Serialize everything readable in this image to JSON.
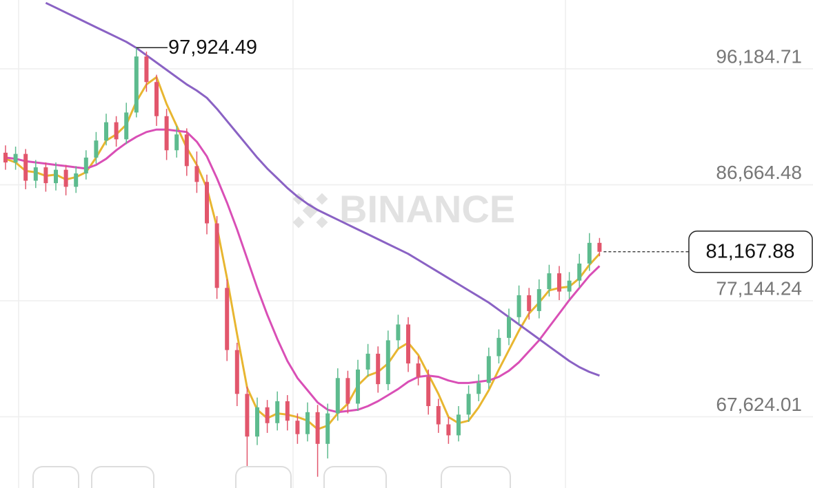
{
  "chart_data": {
    "type": "candlestick",
    "watermark": "BINANCE",
    "up_color": "#5dbb8e",
    "down_color": "#e2566c",
    "ylim": [
      61776,
      101835
    ],
    "yticks": [
      {
        "value": 96184.71,
        "label": "96,184.71"
      },
      {
        "value": 86664.48,
        "label": "86,664.48"
      },
      {
        "value": 77144.24,
        "label": "77,144.24"
      },
      {
        "value": 67624.01,
        "label": "67,624.01"
      }
    ],
    "grid": true,
    "high_annotation": {
      "value": 97924.49,
      "label": "97,924.49"
    },
    "last_price": {
      "value": 81167.88,
      "label": "81,167.88"
    },
    "ohlc": [
      [
        89300,
        89900,
        87900,
        88500
      ],
      [
        88500,
        89800,
        87900,
        89200
      ],
      [
        89200,
        89600,
        86300,
        87000
      ],
      [
        87000,
        88700,
        86400,
        88100
      ],
      [
        88100,
        88500,
        86100,
        86800
      ],
      [
        86800,
        88500,
        86200,
        87900
      ],
      [
        87900,
        88300,
        85800,
        86500
      ],
      [
        86500,
        88200,
        86000,
        87600
      ],
      [
        87600,
        89500,
        87100,
        88900
      ],
      [
        88900,
        91000,
        88400,
        90300
      ],
      [
        90300,
        92500,
        89900,
        91800
      ],
      [
        91800,
        92300,
        89800,
        90400
      ],
      [
        90400,
        93400,
        90000,
        92600
      ],
      [
        92600,
        97924.49,
        92200,
        97200
      ],
      [
        97200,
        97600,
        94300,
        95100
      ],
      [
        95100,
        95700,
        91500,
        92300
      ],
      [
        92300,
        92900,
        88700,
        89500
      ],
      [
        89500,
        91500,
        88900,
        90800
      ],
      [
        90800,
        91300,
        87400,
        88200
      ],
      [
        88200,
        89400,
        86000,
        86900
      ],
      [
        86900,
        87500,
        82600,
        83500
      ],
      [
        83500,
        84100,
        77300,
        78200
      ],
      [
        78200,
        78900,
        72200,
        73100
      ],
      [
        73100,
        73700,
        68500,
        69500
      ],
      [
        69500,
        70100,
        61800,
        66000
      ],
      [
        66000,
        69200,
        65300,
        68400
      ],
      [
        68400,
        69000,
        66300,
        67100
      ],
      [
        67100,
        69700,
        66500,
        68900
      ],
      [
        68900,
        69400,
        66500,
        67300
      ],
      [
        67300,
        67900,
        65400,
        66200
      ],
      [
        66200,
        68800,
        65600,
        68000
      ],
      [
        68000,
        68600,
        62700,
        65400
      ],
      [
        65400,
        68700,
        64200,
        67900
      ],
      [
        67900,
        71600,
        67300,
        70800
      ],
      [
        70800,
        71400,
        67900,
        68700
      ],
      [
        68700,
        72300,
        68100,
        71500
      ],
      [
        71500,
        73600,
        70900,
        72800
      ],
      [
        72800,
        73400,
        69600,
        70300
      ],
      [
        70300,
        74700,
        69800,
        73900
      ],
      [
        73900,
        76000,
        73200,
        75200
      ],
      [
        75200,
        75800,
        71300,
        72000
      ],
      [
        72000,
        72600,
        70200,
        70900
      ],
      [
        70900,
        71500,
        67800,
        68500
      ],
      [
        68500,
        69100,
        66300,
        67000
      ],
      [
        67000,
        67600,
        65400,
        66100
      ],
      [
        66100,
        68500,
        65600,
        67800
      ],
      [
        67800,
        70200,
        67200,
        69500
      ],
      [
        69500,
        71100,
        68900,
        70400
      ],
      [
        70400,
        73300,
        69900,
        72600
      ],
      [
        72600,
        74800,
        72000,
        74100
      ],
      [
        74100,
        76500,
        73500,
        75800
      ],
      [
        75800,
        78400,
        75200,
        77600
      ],
      [
        77600,
        78200,
        75600,
        76300
      ],
      [
        76300,
        78900,
        75700,
        78100
      ],
      [
        78100,
        80100,
        77500,
        79400
      ],
      [
        79400,
        80000,
        77200,
        77900
      ],
      [
        77900,
        79500,
        77300,
        78800
      ],
      [
        78800,
        81000,
        78200,
        80200
      ],
      [
        80200,
        82700,
        79600,
        81900
      ],
      [
        81900,
        82300,
        80800,
        81167.88
      ]
    ],
    "series": [
      {
        "color": "#e8b630",
        "values": [
          88800,
          88500,
          87800,
          87700,
          87400,
          87500,
          87100,
          87300,
          87700,
          88900,
          90300,
          90800,
          91600,
          93500,
          94900,
          95500,
          93300,
          91500,
          89700,
          88300,
          86400,
          83200,
          79000,
          74400,
          70000,
          68200,
          67500,
          67900,
          67800,
          67600,
          67300,
          66600,
          66900,
          67900,
          68700,
          70200,
          71000,
          71300,
          72000,
          73200,
          73700,
          72700,
          71100,
          69500,
          67600,
          67100,
          67300,
          68400,
          69800,
          71500,
          73100,
          74700,
          76100,
          77000,
          78000,
          78200,
          78300,
          79000,
          80100,
          81000
        ]
      },
      {
        "color": "#d94fb6",
        "values": [
          88900,
          88800,
          88600,
          88500,
          88400,
          88300,
          88200,
          88100,
          88000,
          88300,
          88800,
          89500,
          90100,
          90600,
          91000,
          91200,
          91200,
          91100,
          91000,
          90200,
          89000,
          87200,
          85200,
          83000,
          80600,
          78200,
          76000,
          74000,
          72200,
          70800,
          69800,
          68800,
          68200,
          68000,
          68100,
          68200,
          68500,
          68900,
          69400,
          69900,
          70500,
          70900,
          71000,
          70900,
          70600,
          70400,
          70400,
          70500,
          70600,
          70900,
          71400,
          72100,
          73000,
          73900,
          75000,
          76100,
          77200,
          78200,
          79200,
          80000
        ]
      },
      {
        "color": "#8a62c4",
        "values": [
          null,
          null,
          null,
          null,
          101600,
          101200,
          100800,
          100400,
          100000,
          99600,
          99200,
          98800,
          98400,
          97900,
          97300,
          96700,
          96100,
          95500,
          94900,
          94400,
          93800,
          92900,
          91900,
          90900,
          89900,
          88900,
          88000,
          87200,
          86400,
          85700,
          85100,
          84600,
          84200,
          83800,
          83400,
          83000,
          82600,
          82200,
          81800,
          81400,
          81000,
          80500,
          80000,
          79500,
          79000,
          78500,
          78000,
          77500,
          77000,
          76400,
          75800,
          75200,
          74600,
          74000,
          73400,
          72800,
          72200,
          71700,
          71300,
          71000
        ]
      }
    ]
  }
}
